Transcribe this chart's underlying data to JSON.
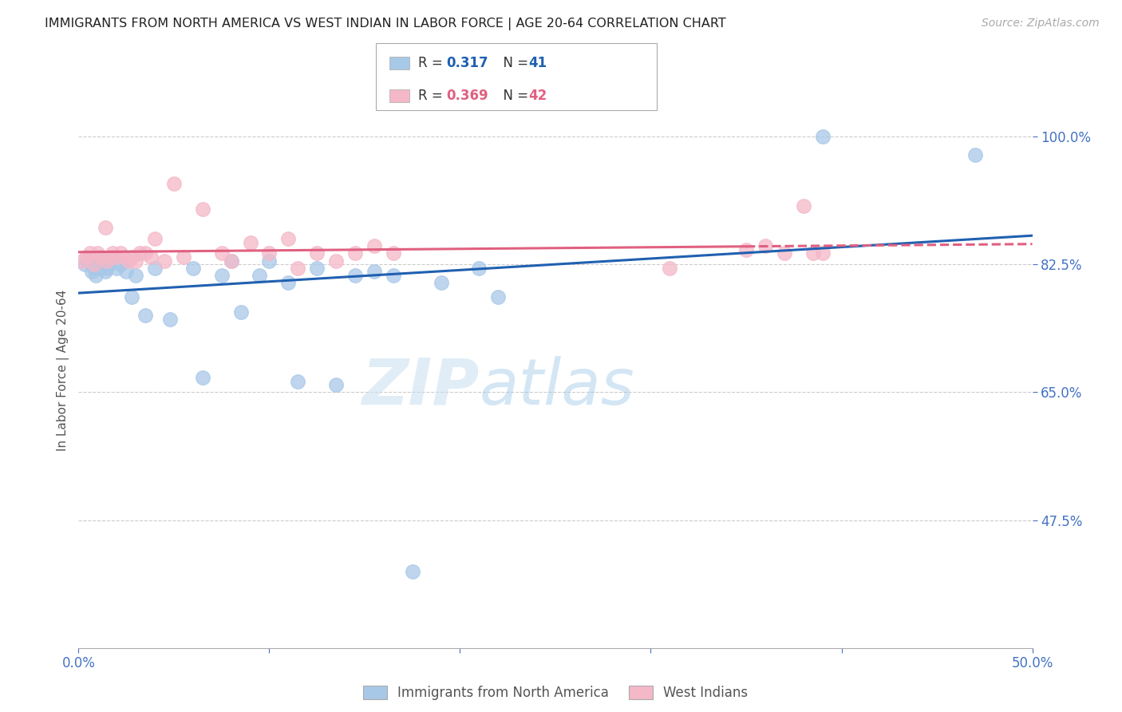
{
  "title": "IMMIGRANTS FROM NORTH AMERICA VS WEST INDIAN IN LABOR FORCE | AGE 20-64 CORRELATION CHART",
  "source": "Source: ZipAtlas.com",
  "ylabel": "In Labor Force | Age 20-64",
  "xlim": [
    0.0,
    0.5
  ],
  "ylim": [
    0.3,
    1.06
  ],
  "yticks": [
    0.475,
    0.65,
    0.825,
    1.0
  ],
  "ytick_labels": [
    "47.5%",
    "65.0%",
    "82.5%",
    "100.0%"
  ],
  "xticks": [
    0.0,
    0.1,
    0.2,
    0.3,
    0.4,
    0.5
  ],
  "xtick_labels": [
    "0.0%",
    "",
    "",
    "",
    "",
    "50.0%"
  ],
  "blue_r": 0.317,
  "blue_n": 41,
  "pink_r": 0.369,
  "pink_n": 42,
  "blue_scatter_color": "#a8c8e8",
  "pink_scatter_color": "#f4b8c8",
  "blue_line_color": "#2060b0",
  "pink_line_color": "#e06080",
  "axis_color": "#4472C4",
  "watermark": "ZIPatlas",
  "legend_label_blue": "Immigrants from North America",
  "legend_label_pink": "West Indians",
  "blue_x": [
    0.003,
    0.005,
    0.007,
    0.008,
    0.009,
    0.01,
    0.011,
    0.012,
    0.013,
    0.014,
    0.015,
    0.016,
    0.018,
    0.02,
    0.022,
    0.025,
    0.028,
    0.03,
    0.035,
    0.04,
    0.048,
    0.06,
    0.065,
    0.075,
    0.08,
    0.085,
    0.095,
    0.1,
    0.11,
    0.115,
    0.125,
    0.135,
    0.145,
    0.155,
    0.165,
    0.175,
    0.19,
    0.21,
    0.22,
    0.39,
    0.47
  ],
  "blue_y": [
    0.825,
    0.83,
    0.815,
    0.82,
    0.81,
    0.83,
    0.835,
    0.82,
    0.825,
    0.815,
    0.82,
    0.825,
    0.835,
    0.82,
    0.825,
    0.815,
    0.78,
    0.81,
    0.755,
    0.82,
    0.75,
    0.82,
    0.67,
    0.81,
    0.83,
    0.76,
    0.81,
    0.83,
    0.8,
    0.665,
    0.82,
    0.66,
    0.81,
    0.815,
    0.81,
    0.405,
    0.8,
    0.82,
    0.78,
    1.0,
    0.975
  ],
  "pink_x": [
    0.002,
    0.004,
    0.006,
    0.008,
    0.01,
    0.012,
    0.014,
    0.015,
    0.016,
    0.018,
    0.02,
    0.022,
    0.024,
    0.026,
    0.028,
    0.03,
    0.032,
    0.035,
    0.038,
    0.04,
    0.045,
    0.05,
    0.055,
    0.065,
    0.075,
    0.08,
    0.09,
    0.1,
    0.11,
    0.115,
    0.125,
    0.135,
    0.145,
    0.155,
    0.165,
    0.31,
    0.35,
    0.36,
    0.37,
    0.38,
    0.385,
    0.39
  ],
  "pink_y": [
    0.83,
    0.835,
    0.84,
    0.825,
    0.84,
    0.835,
    0.875,
    0.83,
    0.835,
    0.84,
    0.835,
    0.84,
    0.835,
    0.83,
    0.835,
    0.83,
    0.84,
    0.84,
    0.835,
    0.86,
    0.83,
    0.935,
    0.835,
    0.9,
    0.84,
    0.83,
    0.855,
    0.84,
    0.86,
    0.82,
    0.84,
    0.83,
    0.84,
    0.85,
    0.84,
    0.82,
    0.845,
    0.85,
    0.84,
    0.905,
    0.84,
    0.84
  ]
}
